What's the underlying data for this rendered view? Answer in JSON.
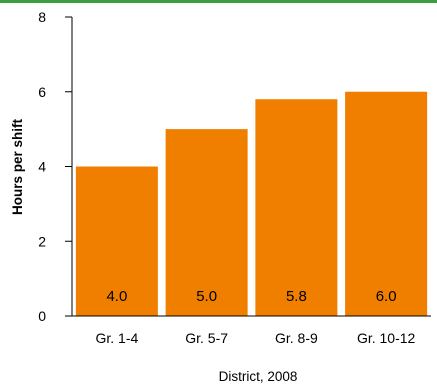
{
  "colors": {
    "bar": "#F07F00",
    "topbar": "#3E9D3E",
    "axis": "#000000"
  },
  "chart_data": {
    "type": "bar",
    "categories": [
      "Gr. 1-4",
      "Gr. 5-7",
      "Gr. 8-9",
      "Gr. 10-12"
    ],
    "values": [
      4.0,
      5.0,
      5.8,
      6.0
    ],
    "value_labels": [
      "4.0",
      "5.0",
      "5.8",
      "6.0"
    ],
    "title": "",
    "xlabel": "District, 2008",
    "ylabel": "Hours per shift",
    "ylim": [
      0,
      8
    ],
    "yticks": [
      0,
      2,
      4,
      6,
      8
    ],
    "ytick_labels": [
      "0",
      "2",
      "4",
      "6",
      "8"
    ],
    "grid": false,
    "legend": "none"
  }
}
